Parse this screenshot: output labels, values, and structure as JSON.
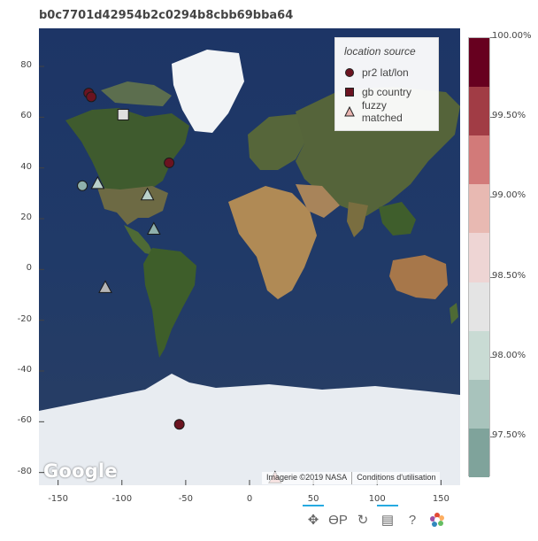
{
  "title": "b0c7701d42954b2c0294b8cbb69bba64",
  "map": {
    "x_range": [
      -165,
      165
    ],
    "y_range": [
      -85,
      95
    ],
    "x_ticks": [
      -150,
      -100,
      -50,
      0,
      50,
      100,
      150
    ],
    "y_ticks": [
      80,
      60,
      40,
      20,
      0,
      -20,
      -40,
      -60,
      -80
    ],
    "points": [
      {
        "source": "pr2 lat/lon",
        "lon": -126,
        "lat": 69.5,
        "color": "#6b1320"
      },
      {
        "source": "pr2 lat/lon",
        "lon": -124,
        "lat": 68,
        "color": "#6b1320"
      },
      {
        "source": "pr2 lat/lon",
        "lon": -63,
        "lat": 42,
        "color": "#6b1320"
      },
      {
        "source": "pr2 lat/lon",
        "lon": -55,
        "lat": -61,
        "color": "#6b1320"
      },
      {
        "source": "pr2 lat/lon",
        "lon": -131,
        "lat": 33,
        "color": "#8fb0ac"
      },
      {
        "source": "gb country",
        "lon": -99,
        "lat": 61,
        "color": "#dfdfdf"
      },
      {
        "source": "fuzzy matched",
        "lon": -119,
        "lat": 34,
        "color": "#b9d0ca"
      },
      {
        "source": "fuzzy matched",
        "lon": -80,
        "lat": 29.5,
        "color": "#b9d0ca"
      },
      {
        "source": "fuzzy matched",
        "lon": -75,
        "lat": 16,
        "color": "#8fb0ac"
      },
      {
        "source": "fuzzy matched",
        "lon": -113,
        "lat": -7,
        "color": "#b6b6b6"
      },
      {
        "source": "fuzzy matched",
        "lon": 20,
        "lat": -82,
        "color": "#dd8f8a"
      }
    ]
  },
  "legend": {
    "title": "location source",
    "items": [
      {
        "label": "pr2 lat/lon",
        "shape": "circle",
        "color": "#6b1320"
      },
      {
        "label": "gb country",
        "shape": "square",
        "color": "#6b1320"
      },
      {
        "label": "fuzzy matched",
        "shape": "triangle",
        "color": "#e9b4b0"
      }
    ]
  },
  "colorbar": {
    "colors": [
      "#67001f",
      "#a13c45",
      "#d27a79",
      "#e8b9b2",
      "#eed5d4",
      "#e4e4e4",
      "#c9dbd4",
      "#a8c3bc",
      "#7fa39b"
    ],
    "labels": [
      "100.00%",
      "99.50%",
      "99.00%",
      "98.50%",
      "98.00%",
      "97.50%"
    ],
    "label_values": [
      100.0,
      99.5,
      99.0,
      98.5,
      98.0,
      97.5
    ],
    "range": [
      97.25,
      100.0
    ]
  },
  "attribution": {
    "logo": "Google",
    "imagery": "Imagerie ©2019 NASA",
    "terms": "Conditions d'utilisation"
  },
  "toolbar": [
    {
      "name": "pan-tool-icon",
      "glyph": "✥",
      "active": true
    },
    {
      "name": "wheel-zoom-tool-icon",
      "glyph": "ϴP",
      "active": false
    },
    {
      "name": "reset-tool-icon",
      "glyph": "↻",
      "active": false
    },
    {
      "name": "hover-tool-icon",
      "glyph": "▤",
      "active": true
    },
    {
      "name": "help-tool-icon",
      "glyph": "?",
      "active": false
    }
  ]
}
